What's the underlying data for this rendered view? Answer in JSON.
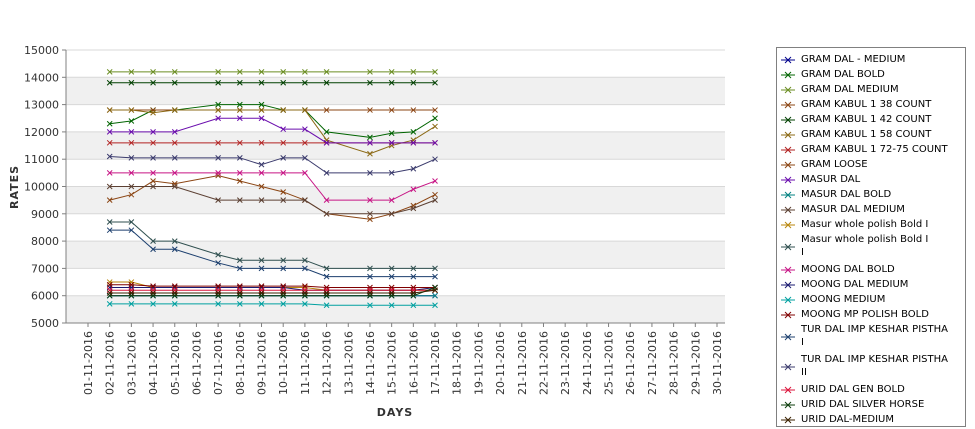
{
  "chart_data": {
    "type": "line",
    "xlabel": "DAYS",
    "ylabel": "RATES",
    "ylim": [
      5000,
      15000
    ],
    "yticks": [
      5000,
      6000,
      7000,
      8000,
      9000,
      10000,
      11000,
      12000,
      13000,
      14000,
      15000
    ],
    "grid": "alternating horizontal bands",
    "legend_position": "right",
    "x_dates": [
      "01-11-2016",
      "02-11-2016",
      "03-11-2016",
      "04-11-2016",
      "05-11-2016",
      "06-11-2016",
      "07-11-2016",
      "08-11-2016",
      "09-11-2016",
      "10-11-2016",
      "11-11-2016",
      "12-11-2016",
      "13-11-2016",
      "14-11-2016",
      "15-11-2016",
      "16-11-2016",
      "17-11-2016",
      "18-11-2016",
      "19-11-2016",
      "20-11-2016",
      "21-11-2016",
      "22-11-2016",
      "23-11-2016",
      "24-11-2016",
      "25-11-2016",
      "26-11-2016",
      "27-11-2016",
      "28-11-2016",
      "29-11-2016",
      "30-11-2016"
    ],
    "data_dates": [
      "02-11-2016",
      "03-11-2016",
      "04-11-2016",
      "05-11-2016",
      "07-11-2016",
      "08-11-2016",
      "09-11-2016",
      "10-11-2016",
      "11-11-2016",
      "12-11-2016",
      "14-11-2016",
      "15-11-2016",
      "16-11-2016",
      "17-11-2016"
    ],
    "series": [
      {
        "name": "GRAM DAL - MEDIUM",
        "color": "#00008B",
        "values": [
          6000,
          6000,
          6000,
          6000,
          6000,
          6000,
          6000,
          6000,
          6000,
          6000,
          6000,
          6000,
          6000,
          6000
        ]
      },
      {
        "name": "GRAM DAL BOLD",
        "color": "#006400",
        "values": [
          12300,
          12400,
          12800,
          12800,
          13000,
          13000,
          13000,
          12800,
          12800,
          12000,
          11800,
          11950,
          12000,
          12500
        ]
      },
      {
        "name": "GRAM DAL MEDIUM",
        "color": "#6B8E23",
        "values": [
          14200,
          14200,
          14200,
          14200,
          14200,
          14200,
          14200,
          14200,
          14200,
          14200,
          14200,
          14200,
          14200,
          14200
        ]
      },
      {
        "name": "GRAM KABUL 1 38 COUNT",
        "color": "#8B4513",
        "values": [
          12800,
          12800,
          12800,
          12800,
          12800,
          12800,
          12800,
          12800,
          12800,
          12800,
          12800,
          12800,
          12800,
          12800
        ]
      },
      {
        "name": "GRAM KABUL 1 42 COUNT",
        "color": "#004000",
        "values": [
          13800,
          13800,
          13800,
          13800,
          13800,
          13800,
          13800,
          13800,
          13800,
          13800,
          13800,
          13800,
          13800,
          13800
        ]
      },
      {
        "name": "GRAM KABUL 1 58 COUNT",
        "color": "#8B6914",
        "values": [
          12800,
          12800,
          12700,
          12800,
          12800,
          12800,
          12800,
          12800,
          12800,
          11700,
          11200,
          11500,
          11700,
          12200
        ]
      },
      {
        "name": "GRAM KABUL 1 72-75 COUNT",
        "color": "#B22222",
        "values": [
          11600,
          11600,
          11600,
          11600,
          11600,
          11600,
          11600,
          11600,
          11600,
          11600,
          11600,
          11600,
          11600,
          11600
        ]
      },
      {
        "name": "GRAM LOOSE",
        "color": "#8B4513",
        "values": [
          9500,
          9700,
          10200,
          10100,
          10400,
          10200,
          10000,
          9800,
          9500,
          9000,
          8800,
          9000,
          9300,
          9700
        ]
      },
      {
        "name": "MASUR DAL",
        "color": "#6A0DAD",
        "values": [
          12000,
          12000,
          12000,
          12000,
          12500,
          12500,
          12500,
          12100,
          12100,
          11600,
          11600,
          11600,
          11600,
          11600
        ]
      },
      {
        "name": "MASUR DAL BOLD",
        "color": "#008080",
        "values": [
          6000,
          6000,
          6000,
          6000,
          6000,
          6000,
          6000,
          6000,
          6000,
          6000,
          6000,
          6000,
          6000,
          6000
        ]
      },
      {
        "name": "MASUR DAL MEDIUM",
        "color": "#5C4033",
        "values": [
          10000,
          10000,
          10000,
          10000,
          9500,
          9500,
          9500,
          9500,
          9500,
          9000,
          9000,
          9000,
          9200,
          9500
        ]
      },
      {
        "name": "Masur whole polish Bold I",
        "color": "#B8860B",
        "values": [
          6500,
          6500,
          6300,
          6300,
          6300,
          6300,
          6300,
          6300,
          6300,
          6200,
          6200,
          6200,
          6200,
          6200
        ]
      },
      {
        "name": "Masur whole polish Bold I\nI",
        "color": "#2F4F4F",
        "values": [
          8700,
          8700,
          8000,
          8000,
          7500,
          7300,
          7300,
          7300,
          7300,
          7000,
          7000,
          7000,
          7000,
          7000
        ]
      },
      {
        "name": "MOONG DAL BOLD",
        "color": "#C71585",
        "values": [
          10500,
          10500,
          10500,
          10500,
          10500,
          10500,
          10500,
          10500,
          10500,
          9500,
          9500,
          9500,
          9900,
          10200
        ]
      },
      {
        "name": "MOONG DAL MEDIUM",
        "color": "#191970",
        "values": [
          6300,
          6300,
          6300,
          6300,
          6300,
          6300,
          6300,
          6300,
          6200,
          6200,
          6200,
          6200,
          6200,
          6300
        ]
      },
      {
        "name": "MOONG MEDIUM",
        "color": "#00A0A0",
        "values": [
          5700,
          5700,
          5700,
          5700,
          5700,
          5700,
          5700,
          5700,
          5700,
          5650,
          5650,
          5650,
          5650,
          5650
        ]
      },
      {
        "name": "MOONG MP POLISH BOLD",
        "color": "#800000",
        "values": [
          6400,
          6400,
          6350,
          6350,
          6350,
          6350,
          6350,
          6350,
          6350,
          6300,
          6300,
          6300,
          6300,
          6300
        ]
      },
      {
        "name": "TUR DAL IMP KESHAR PISTHA\nI",
        "color": "#1C3F6E",
        "values": [
          8400,
          8400,
          7700,
          7700,
          7200,
          7000,
          7000,
          7000,
          7000,
          6700,
          6700,
          6700,
          6700,
          6700
        ]
      },
      {
        "name": "TUR DAL IMP KESHAR PISTHA\nII",
        "color": "#3B3B6D",
        "values": [
          11100,
          11050,
          11050,
          11050,
          11050,
          11050,
          10800,
          11050,
          11050,
          10500,
          10500,
          10500,
          10650,
          11000
        ]
      },
      {
        "name": "URID DAL GEN BOLD",
        "color": "#DC143C",
        "values": [
          6200,
          6200,
          6200,
          6200,
          6200,
          6200,
          6200,
          6200,
          6200,
          6200,
          6200,
          6200,
          6200,
          6200
        ]
      },
      {
        "name": "URID DAL SILVER HORSE",
        "color": "#0B3D0B",
        "values": [
          6000,
          6000,
          6000,
          6000,
          6000,
          6000,
          6000,
          6000,
          6000,
          6000,
          6000,
          6000,
          6000,
          6300
        ]
      },
      {
        "name": "URID DAL-MEDIUM",
        "color": "#3B2200",
        "values": [
          6100,
          6100,
          6100,
          6100,
          6100,
          6100,
          6100,
          6100,
          6100,
          6100,
          6100,
          6100,
          6100,
          6200
        ]
      }
    ]
  }
}
